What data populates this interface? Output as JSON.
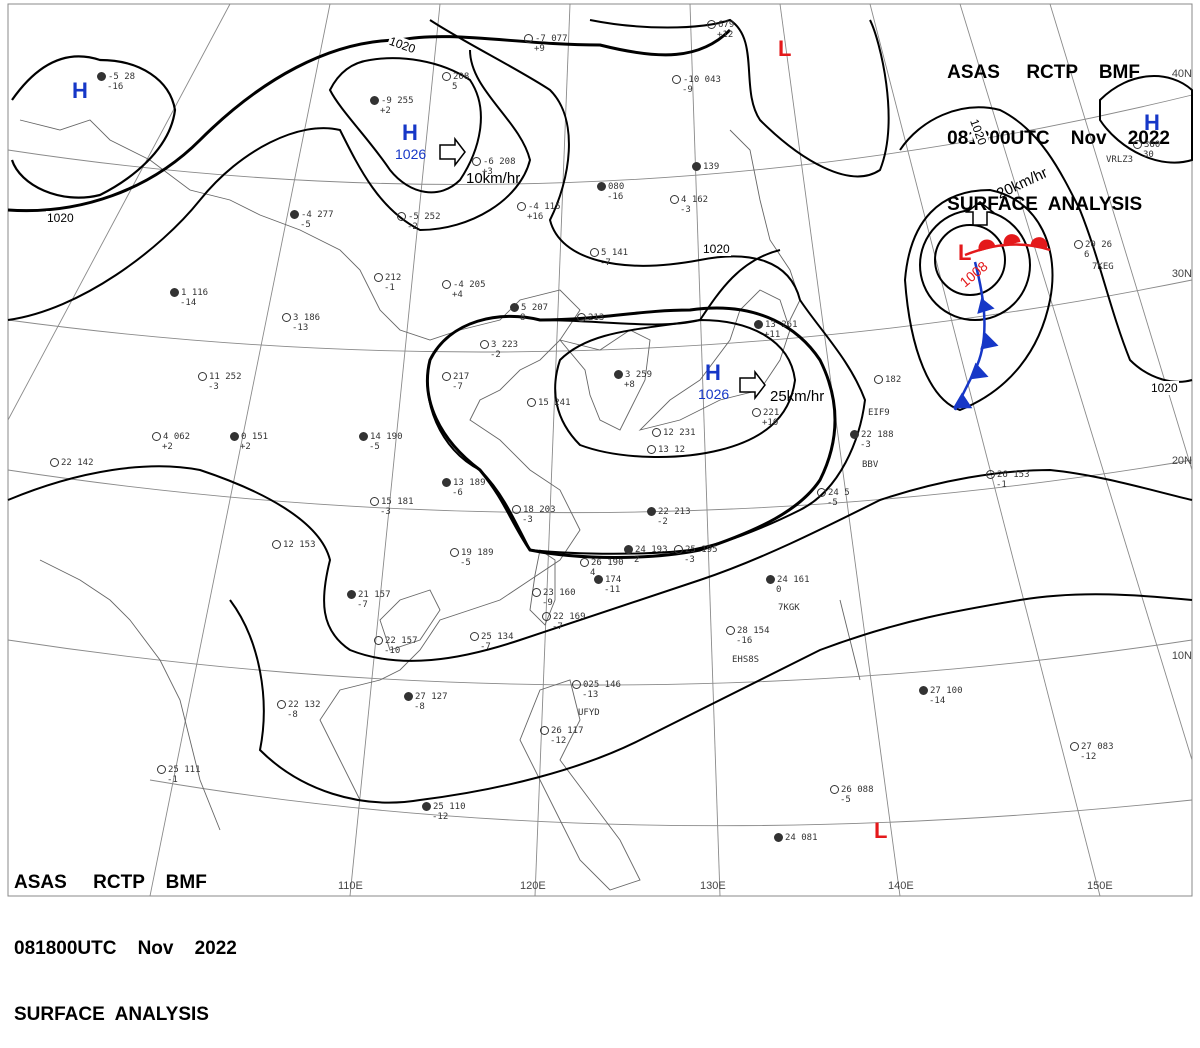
{
  "header_top_right": {
    "line1": "ASAS     RCTP    BMF",
    "line2": "081800UTC    Nov    2022",
    "line3": "SURFACE  ANALYSIS"
  },
  "header_bottom_left": {
    "line1": "ASAS     RCTP    BMF",
    "line2": "081800UTC    Nov    2022",
    "line3": "SURFACE  ANALYSIS"
  },
  "lat_labels": [
    "40N",
    "30N",
    "20N",
    "10N"
  ],
  "lon_labels": [
    "110E",
    "120E",
    "130E",
    "140E",
    "150E"
  ],
  "pressure_centers": [
    {
      "type": "H",
      "value": ""
    },
    {
      "type": "H",
      "value": "1026"
    },
    {
      "type": "H",
      "value": "1026"
    },
    {
      "type": "H",
      "value": ""
    },
    {
      "type": "L",
      "value": ""
    },
    {
      "type": "L",
      "value": "1008"
    },
    {
      "type": "L",
      "value": ""
    }
  ],
  "isobar_labels": [
    "1020",
    "1020",
    "1020",
    "1020",
    "1020"
  ],
  "motion_labels": [
    "10km/hr",
    "25km/hr",
    "20km/hr"
  ],
  "stations": [
    {
      "id": "s1",
      "text": "-5  28",
      "sub": "-16"
    },
    {
      "id": "s2",
      "text": "-7  077",
      "sub": "+9"
    },
    {
      "id": "s3",
      "text": "208",
      "sub": "5"
    },
    {
      "id": "s4",
      "text": "-9  255",
      "sub": "+2"
    },
    {
      "id": "s5",
      "text": "-6  208",
      "sub": "+3"
    },
    {
      "id": "s6",
      "text": "-5  252",
      "sub": "-2"
    },
    {
      "id": "s7",
      "text": "-4  277",
      "sub": "-5"
    },
    {
      "id": "s8",
      "text": "212",
      "sub": "-1"
    },
    {
      "id": "s9",
      "text": "-4  205",
      "sub": "+4"
    },
    {
      "id": "s10",
      "text": "1  116",
      "sub": "-14"
    },
    {
      "id": "s11",
      "text": "3  186",
      "sub": "-13"
    },
    {
      "id": "s12",
      "text": "11  252",
      "sub": "-3"
    },
    {
      "id": "s13",
      "text": "0  151",
      "sub": "+2"
    },
    {
      "id": "s14",
      "text": "4  062",
      "sub": "+2"
    },
    {
      "id": "s15",
      "text": "22  142",
      "sub": ""
    },
    {
      "id": "s16",
      "text": "14  190",
      "sub": "-5"
    },
    {
      "id": "s17",
      "text": "217",
      "sub": "-7"
    },
    {
      "id": "s18",
      "text": "3  223",
      "sub": "-2"
    },
    {
      "id": "s19",
      "text": "5  207",
      "sub": "8"
    },
    {
      "id": "s20",
      "text": "213",
      "sub": ""
    },
    {
      "id": "s21",
      "text": "-4  115",
      "sub": "+16"
    },
    {
      "id": "s22",
      "text": "080",
      "sub": "-16"
    },
    {
      "id": "s23",
      "text": "5  141",
      "sub": "-7"
    },
    {
      "id": "s24",
      "text": "-10  043",
      "sub": "-9"
    },
    {
      "id": "s25",
      "text": "139",
      "sub": ""
    },
    {
      "id": "s26",
      "text": "4  162",
      "sub": "-3"
    },
    {
      "id": "s27",
      "text": "679",
      "sub": "+12"
    },
    {
      "id": "s28",
      "text": "3  259",
      "sub": "+8"
    },
    {
      "id": "s29",
      "text": "15  241",
      "sub": ""
    },
    {
      "id": "s30",
      "text": "12  231",
      "sub": ""
    },
    {
      "id": "s31",
      "text": "13  189",
      "sub": "-6"
    },
    {
      "id": "s32",
      "text": "15  181",
      "sub": "-3"
    },
    {
      "id": "s33",
      "text": "18  203",
      "sub": "-3"
    },
    {
      "id": "s34",
      "text": "22  213",
      "sub": "-2"
    },
    {
      "id": "s35",
      "text": "12  153",
      "sub": ""
    },
    {
      "id": "s36",
      "text": "19  189",
      "sub": "-5"
    },
    {
      "id": "s37",
      "text": "24  193",
      "sub": "2"
    },
    {
      "id": "s38",
      "text": "25  195",
      "sub": "-3"
    },
    {
      "id": "s39",
      "text": "26  190",
      "sub": "4"
    },
    {
      "id": "s40",
      "text": "174",
      "sub": "-11"
    },
    {
      "id": "s41",
      "text": "23  160",
      "sub": "-9"
    },
    {
      "id": "s42",
      "text": "22  169",
      "sub": "-7"
    },
    {
      "id": "s43",
      "text": "21  157",
      "sub": "-7"
    },
    {
      "id": "s44",
      "text": "22  157",
      "sub": "-10"
    },
    {
      "id": "s45",
      "text": "25  134",
      "sub": "-7"
    },
    {
      "id": "s46",
      "text": "27  127",
      "sub": "-8"
    },
    {
      "id": "s47",
      "text": "22  132",
      "sub": "-8"
    },
    {
      "id": "s48",
      "text": "25  111",
      "sub": "-1"
    },
    {
      "id": "s49",
      "text": "25  110",
      "sub": "-12"
    },
    {
      "id": "s50",
      "text": "025  146",
      "sub": "-13"
    },
    {
      "id": "s51",
      "text": "26  117",
      "sub": "-12"
    },
    {
      "id": "s52",
      "text": "24  161",
      "sub": "0"
    },
    {
      "id": "s53",
      "text": "28  154",
      "sub": "-16"
    },
    {
      "id": "s54",
      "text": "24  5",
      "sub": "-5"
    },
    {
      "id": "s55",
      "text": "22  188",
      "sub": "-3"
    },
    {
      "id": "s56",
      "text": "182",
      "sub": ""
    },
    {
      "id": "s57",
      "text": "26  153",
      "sub": "-1"
    },
    {
      "id": "s58",
      "text": "27  100",
      "sub": "-14"
    },
    {
      "id": "s59",
      "text": "27  083",
      "sub": "-12"
    },
    {
      "id": "s60",
      "text": "26  088",
      "sub": "-5"
    },
    {
      "id": "s61",
      "text": "24  081",
      "sub": ""
    },
    {
      "id": "s62",
      "text": "20  26",
      "sub": "6"
    },
    {
      "id": "s63",
      "text": "360",
      "sub": "30"
    },
    {
      "id": "s64",
      "text": "13  261",
      "sub": "+11"
    },
    {
      "id": "s65",
      "text": "221",
      "sub": "+10"
    },
    {
      "id": "s66",
      "text": "13  12",
      "sub": ""
    }
  ],
  "ship_ids": [
    "VRLZ3",
    "7KEG",
    "EIF9",
    "BBV",
    "7KGK",
    "EHS8S",
    "UFYD"
  ]
}
